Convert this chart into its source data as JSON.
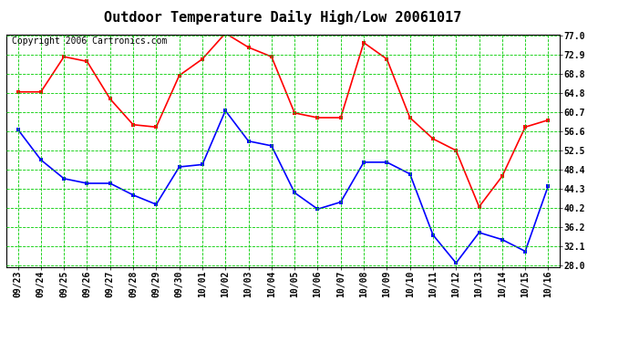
{
  "title": "Outdoor Temperature Daily High/Low 20061017",
  "copyright": "Copyright 2006 Cartronics.com",
  "dates": [
    "09/23",
    "09/24",
    "09/25",
    "09/26",
    "09/27",
    "09/28",
    "09/29",
    "09/30",
    "10/01",
    "10/02",
    "10/03",
    "10/04",
    "10/05",
    "10/06",
    "10/07",
    "10/08",
    "10/09",
    "10/10",
    "10/11",
    "10/12",
    "10/13",
    "10/14",
    "10/15",
    "10/16"
  ],
  "high_temps": [
    65.0,
    65.0,
    72.5,
    71.5,
    63.5,
    58.0,
    57.5,
    68.5,
    72.0,
    77.5,
    74.5,
    72.5,
    60.5,
    59.5,
    59.5,
    75.5,
    72.0,
    59.5,
    55.0,
    52.5,
    40.5,
    47.0,
    57.5,
    59.0
  ],
  "low_temps": [
    57.0,
    50.5,
    46.5,
    45.5,
    45.5,
    43.0,
    41.0,
    49.0,
    49.5,
    61.0,
    54.5,
    53.5,
    43.5,
    40.0,
    41.5,
    50.0,
    50.0,
    47.5,
    34.5,
    28.5,
    35.0,
    33.5,
    31.0,
    45.0
  ],
  "yticks": [
    28.0,
    32.1,
    36.2,
    40.2,
    44.3,
    48.4,
    52.5,
    56.6,
    60.7,
    64.8,
    68.8,
    72.9,
    77.0
  ],
  "high_color": "#ff0000",
  "low_color": "#0000ff",
  "grid_color": "#00cc00",
  "bg_color": "#ffffff",
  "title_fontsize": 11,
  "copyright_fontsize": 7,
  "tick_fontsize": 7
}
